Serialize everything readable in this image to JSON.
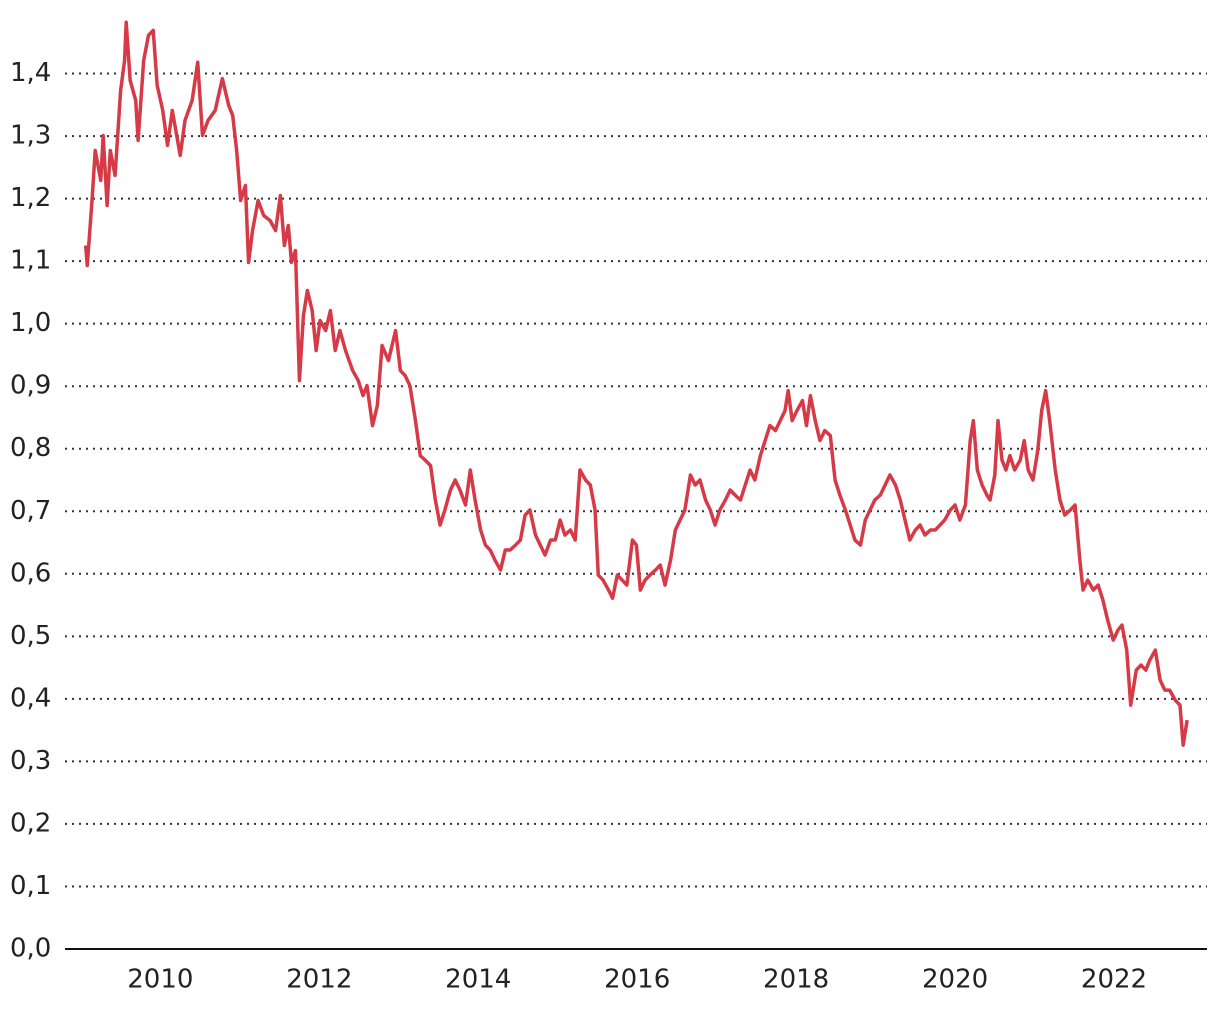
{
  "chart_data": {
    "type": "line",
    "color": "#d63a47",
    "grid": true,
    "xlim": [
      2008.8,
      2023.17
    ],
    "xticks": [
      2010,
      2012,
      2014,
      2016,
      2018,
      2020,
      2022
    ],
    "ylim": [
      0,
      1.5
    ],
    "yticks": [
      {
        "value": 0,
        "label": "0,0"
      },
      {
        "value": 0.1,
        "label": "0,1"
      },
      {
        "value": 0.2,
        "label": "0,2"
      },
      {
        "value": 0.3,
        "label": "0,3"
      },
      {
        "value": 0.4,
        "label": "0,4"
      },
      {
        "value": 0.5,
        "label": "0,5"
      },
      {
        "value": 0.6,
        "label": "0,6"
      },
      {
        "value": 0.7,
        "label": "0,7"
      },
      {
        "value": 0.8,
        "label": "0,8"
      },
      {
        "value": 0.9,
        "label": "0,9"
      },
      {
        "value": 1.0,
        "label": "1,0"
      },
      {
        "value": 1.1,
        "label": "1,1"
      },
      {
        "value": 1.2,
        "label": "1,2"
      },
      {
        "value": 1.3,
        "label": "1,3"
      },
      {
        "value": 1.4,
        "label": "1,4"
      }
    ],
    "x": [
      2009.06,
      2009.08,
      2009.14,
      2009.18,
      2009.25,
      2009.28,
      2009.33,
      2009.37,
      2009.43,
      2009.5,
      2009.55,
      2009.57,
      2009.62,
      2009.69,
      2009.72,
      2009.79,
      2009.85,
      2009.91,
      2009.96,
      2010.03,
      2010.09,
      2010.15,
      2010.25,
      2010.31,
      2010.4,
      2010.47,
      2010.53,
      2010.6,
      2010.69,
      2010.78,
      2010.86,
      2010.91,
      2010.96,
      2011.01,
      2011.07,
      2011.11,
      2011.16,
      2011.23,
      2011.3,
      2011.38,
      2011.45,
      2011.51,
      2011.56,
      2011.61,
      2011.65,
      2011.7,
      2011.75,
      2011.8,
      2011.85,
      2011.91,
      2011.96,
      2012.01,
      2012.08,
      2012.14,
      2012.2,
      2012.26,
      2012.33,
      2012.42,
      2012.49,
      2012.55,
      2012.6,
      2012.67,
      2012.73,
      2012.79,
      2012.87,
      2012.96,
      2013.02,
      2013.08,
      2013.14,
      2013.21,
      2013.27,
      2013.33,
      2013.4,
      2013.46,
      2013.52,
      2013.58,
      2013.65,
      2013.71,
      2013.77,
      2013.84,
      2013.9,
      2013.96,
      2014.03,
      2014.09,
      2014.15,
      2014.21,
      2014.28,
      2014.34,
      2014.4,
      2014.47,
      2014.53,
      2014.59,
      2014.65,
      2014.72,
      2014.78,
      2014.84,
      2014.91,
      2014.97,
      2015.03,
      2015.09,
      2015.16,
      2015.22,
      2015.28,
      2015.35,
      2015.41,
      2015.47,
      2015.51,
      2015.57,
      2015.64,
      2015.69,
      2015.75,
      2015.81,
      2015.87,
      2015.94,
      2015.99,
      2016.04,
      2016.1,
      2016.16,
      2016.23,
      2016.29,
      2016.35,
      2016.42,
      2016.48,
      2016.54,
      2016.6,
      2016.67,
      2016.73,
      2016.79,
      2016.86,
      2016.92,
      2016.98,
      2017.04,
      2017.11,
      2017.17,
      2017.23,
      2017.3,
      2017.36,
      2017.42,
      2017.48,
      2017.55,
      2017.61,
      2017.67,
      2017.74,
      2017.8,
      2017.86,
      2017.9,
      2017.95,
      2018.01,
      2018.08,
      2018.13,
      2018.18,
      2018.24,
      2018.3,
      2018.36,
      2018.43,
      2018.49,
      2018.55,
      2018.62,
      2018.68,
      2018.74,
      2018.81,
      2018.87,
      2018.93,
      2018.99,
      2019.06,
      2019.12,
      2019.18,
      2019.25,
      2019.31,
      2019.37,
      2019.43,
      2019.5,
      2019.56,
      2019.62,
      2019.69,
      2019.75,
      2019.81,
      2019.87,
      2019.94,
      2020.0,
      2020.06,
      2020.13,
      2020.19,
      2020.23,
      2020.28,
      2020.34,
      2020.4,
      2020.44,
      2020.5,
      2020.54,
      2020.59,
      2020.64,
      2020.69,
      2020.75,
      2020.82,
      2020.87,
      2020.92,
      2020.98,
      2021.04,
      2021.09,
      2021.14,
      2021.19,
      2021.26,
      2021.32,
      2021.38,
      2021.45,
      2021.51,
      2021.57,
      2021.61,
      2021.67,
      2021.74,
      2021.8,
      2021.86,
      2021.92,
      2021.99,
      2022.05,
      2022.1,
      2022.16,
      2022.21,
      2022.28,
      2022.34,
      2022.4,
      2022.45,
      2022.52,
      2022.58,
      2022.64,
      2022.7,
      2022.77,
      2022.83,
      2022.87,
      2022.92
    ],
    "values": [
      1.125,
      1.093,
      1.197,
      1.277,
      1.229,
      1.301,
      1.189,
      1.277,
      1.237,
      1.373,
      1.421,
      1.482,
      1.389,
      1.357,
      1.293,
      1.421,
      1.461,
      1.469,
      1.381,
      1.341,
      1.285,
      1.341,
      1.269,
      1.325,
      1.357,
      1.418,
      1.301,
      1.325,
      1.341,
      1.392,
      1.349,
      1.333,
      1.277,
      1.197,
      1.221,
      1.098,
      1.149,
      1.197,
      1.173,
      1.165,
      1.149,
      1.205,
      1.125,
      1.157,
      1.098,
      1.117,
      0.909,
      1.013,
      1.053,
      1.021,
      0.957,
      1.005,
      0.989,
      1.021,
      0.957,
      0.989,
      0.957,
      0.925,
      0.909,
      0.885,
      0.901,
      0.837,
      0.869,
      0.965,
      0.941,
      0.989,
      0.925,
      0.917,
      0.901,
      0.845,
      0.789,
      0.782,
      0.773,
      0.718,
      0.678,
      0.702,
      0.734,
      0.75,
      0.734,
      0.71,
      0.766,
      0.718,
      0.67,
      0.646,
      0.638,
      0.622,
      0.606,
      0.638,
      0.638,
      0.646,
      0.654,
      0.694,
      0.702,
      0.662,
      0.646,
      0.63,
      0.654,
      0.654,
      0.686,
      0.662,
      0.67,
      0.654,
      0.766,
      0.75,
      0.742,
      0.702,
      0.598,
      0.59,
      0.574,
      0.561,
      0.598,
      0.59,
      0.582,
      0.654,
      0.646,
      0.574,
      0.59,
      0.598,
      0.606,
      0.614,
      0.582,
      0.622,
      0.67,
      0.686,
      0.702,
      0.758,
      0.742,
      0.75,
      0.718,
      0.702,
      0.678,
      0.702,
      0.718,
      0.734,
      0.726,
      0.718,
      0.742,
      0.766,
      0.75,
      0.789,
      0.813,
      0.837,
      0.829,
      0.845,
      0.861,
      0.893,
      0.845,
      0.861,
      0.877,
      0.837,
      0.885,
      0.845,
      0.813,
      0.829,
      0.821,
      0.75,
      0.726,
      0.702,
      0.678,
      0.654,
      0.646,
      0.686,
      0.702,
      0.718,
      0.726,
      0.742,
      0.758,
      0.742,
      0.718,
      0.686,
      0.654,
      0.67,
      0.678,
      0.662,
      0.67,
      0.67,
      0.678,
      0.686,
      0.702,
      0.71,
      0.686,
      0.71,
      0.813,
      0.845,
      0.766,
      0.742,
      0.726,
      0.718,
      0.758,
      0.845,
      0.782,
      0.766,
      0.789,
      0.766,
      0.782,
      0.813,
      0.766,
      0.75,
      0.797,
      0.861,
      0.893,
      0.845,
      0.766,
      0.718,
      0.694,
      0.702,
      0.71,
      0.622,
      0.574,
      0.59,
      0.574,
      0.582,
      0.558,
      0.526,
      0.494,
      0.51,
      0.518,
      0.478,
      0.39,
      0.446,
      0.454,
      0.446,
      0.462,
      0.478,
      0.43,
      0.414,
      0.414,
      0.398,
      0.39,
      0.326,
      0.366
    ]
  }
}
